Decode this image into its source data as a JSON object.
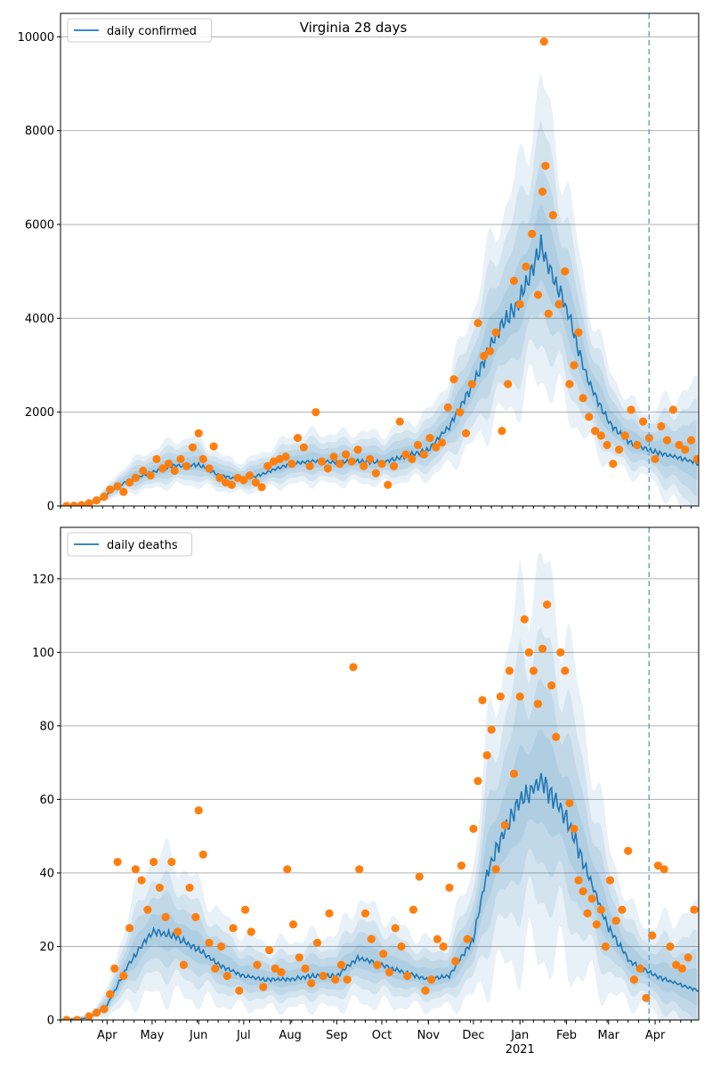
{
  "title": "Virginia 28 days",
  "colors": {
    "model_line": "#1f77b4",
    "observed_points": "#ff7f0e",
    "band": "#1f77b4",
    "grid": "#b0b0b0",
    "forecast_marker": "#6fa8d6"
  },
  "chart_data": [
    {
      "type": "line",
      "panel": "top",
      "title": "Virginia 28 days",
      "legend": {
        "placement": "top-left",
        "entries": [
          "daily confirmed"
        ]
      },
      "series": [
        {
          "name": "daily confirmed",
          "kind": "model-median-line"
        },
        {
          "kind": "observed-points"
        }
      ],
      "x_range": [
        "2020-03-01",
        "2021-04-30"
      ],
      "ylim": [
        0,
        10500
      ],
      "y_ticks": [
        0,
        2000,
        4000,
        6000,
        8000,
        10000
      ],
      "y_tick_labels": [
        "0",
        "2000",
        "4000",
        "6000",
        "8000",
        "10000"
      ],
      "grid": "y",
      "forecast_start": "2021-03-28",
      "median_anchors": [
        [
          "2020-03-01",
          0
        ],
        [
          "2020-03-15",
          10
        ],
        [
          "2020-03-25",
          80
        ],
        [
          "2020-04-01",
          250
        ],
        [
          "2020-04-15",
          550
        ],
        [
          "2020-05-01",
          720
        ],
        [
          "2020-05-15",
          850
        ],
        [
          "2020-06-01",
          880
        ],
        [
          "2020-06-15",
          650
        ],
        [
          "2020-07-01",
          560
        ],
        [
          "2020-07-15",
          700
        ],
        [
          "2020-08-01",
          900
        ],
        [
          "2020-08-15",
          950
        ],
        [
          "2020-09-01",
          930
        ],
        [
          "2020-09-15",
          960
        ],
        [
          "2020-10-01",
          930
        ],
        [
          "2020-10-15",
          1050
        ],
        [
          "2020-11-01",
          1200
        ],
        [
          "2020-11-15",
          1700
        ],
        [
          "2020-12-01",
          2600
        ],
        [
          "2020-12-15",
          3600
        ],
        [
          "2021-01-01",
          4400
        ],
        [
          "2021-01-15",
          5550
        ],
        [
          "2021-02-01",
          4200
        ],
        [
          "2021-02-15",
          2700
        ],
        [
          "2021-03-01",
          1800
        ],
        [
          "2021-03-15",
          1350
        ],
        [
          "2021-04-01",
          1150
        ],
        [
          "2021-04-15",
          1050
        ],
        [
          "2021-04-30",
          900
        ]
      ],
      "points": [
        [
          "2020-03-05",
          0
        ],
        [
          "2020-03-10",
          5
        ],
        [
          "2020-03-15",
          20
        ],
        [
          "2020-03-20",
          60
        ],
        [
          "2020-03-25",
          120
        ],
        [
          "2020-03-30",
          200
        ],
        [
          "2020-04-03",
          350
        ],
        [
          "2020-04-08",
          420
        ],
        [
          "2020-04-12",
          300
        ],
        [
          "2020-04-16",
          500
        ],
        [
          "2020-04-20",
          600
        ],
        [
          "2020-04-25",
          750
        ],
        [
          "2020-04-30",
          650
        ],
        [
          "2020-05-04",
          1000
        ],
        [
          "2020-05-08",
          800
        ],
        [
          "2020-05-12",
          900
        ],
        [
          "2020-05-16",
          750
        ],
        [
          "2020-05-20",
          1000
        ],
        [
          "2020-05-24",
          850
        ],
        [
          "2020-05-28",
          1250
        ],
        [
          "2020-06-01",
          1550
        ],
        [
          "2020-06-04",
          1000
        ],
        [
          "2020-06-08",
          800
        ],
        [
          "2020-06-11",
          1270
        ],
        [
          "2020-06-15",
          600
        ],
        [
          "2020-06-19",
          500
        ],
        [
          "2020-06-23",
          450
        ],
        [
          "2020-06-27",
          600
        ],
        [
          "2020-07-01",
          550
        ],
        [
          "2020-07-05",
          650
        ],
        [
          "2020-07-09",
          500
        ],
        [
          "2020-07-13",
          400
        ],
        [
          "2020-07-17",
          850
        ],
        [
          "2020-07-21",
          950
        ],
        [
          "2020-07-25",
          1000
        ],
        [
          "2020-07-29",
          1050
        ],
        [
          "2020-08-02",
          900
        ],
        [
          "2020-08-06",
          1450
        ],
        [
          "2020-08-10",
          1250
        ],
        [
          "2020-08-14",
          850
        ],
        [
          "2020-08-18",
          2000
        ],
        [
          "2020-08-22",
          950
        ],
        [
          "2020-08-26",
          800
        ],
        [
          "2020-08-30",
          1050
        ],
        [
          "2020-09-03",
          900
        ],
        [
          "2020-09-07",
          1100
        ],
        [
          "2020-09-11",
          950
        ],
        [
          "2020-09-15",
          1200
        ],
        [
          "2020-09-19",
          850
        ],
        [
          "2020-09-23",
          1000
        ],
        [
          "2020-09-27",
          700
        ],
        [
          "2020-10-01",
          900
        ],
        [
          "2020-10-05",
          450
        ],
        [
          "2020-10-09",
          850
        ],
        [
          "2020-10-13",
          1800
        ],
        [
          "2020-10-17",
          1100
        ],
        [
          "2020-10-21",
          1000
        ],
        [
          "2020-10-25",
          1300
        ],
        [
          "2020-10-29",
          1100
        ],
        [
          "2020-11-02",
          1450
        ],
        [
          "2020-11-06",
          1250
        ],
        [
          "2020-11-10",
          1350
        ],
        [
          "2020-11-14",
          2100
        ],
        [
          "2020-11-18",
          2700
        ],
        [
          "2020-11-22",
          2000
        ],
        [
          "2020-11-26",
          1550
        ],
        [
          "2020-11-30",
          2600
        ],
        [
          "2020-12-04",
          3900
        ],
        [
          "2020-12-08",
          3200
        ],
        [
          "2020-12-12",
          3300
        ],
        [
          "2020-12-16",
          3700
        ],
        [
          "2020-12-20",
          1600
        ],
        [
          "2020-12-24",
          2600
        ],
        [
          "2020-12-28",
          4800
        ],
        [
          "2021-01-01",
          4300
        ],
        [
          "2021-01-05",
          5100
        ],
        [
          "2021-01-09",
          5800
        ],
        [
          "2021-01-13",
          4500
        ],
        [
          "2021-01-16",
          6700
        ],
        [
          "2021-01-18",
          7250
        ],
        [
          "2021-01-17",
          9900
        ],
        [
          "2021-01-20",
          4100
        ],
        [
          "2021-01-23",
          6200
        ],
        [
          "2021-01-27",
          4300
        ],
        [
          "2021-01-31",
          5000
        ],
        [
          "2021-02-03",
          2600
        ],
        [
          "2021-02-06",
          3000
        ],
        [
          "2021-02-09",
          3700
        ],
        [
          "2021-02-12",
          2300
        ],
        [
          "2021-02-16",
          1900
        ],
        [
          "2021-02-20",
          1600
        ],
        [
          "2021-02-24",
          1500
        ],
        [
          "2021-02-28",
          1300
        ],
        [
          "2021-03-04",
          900
        ],
        [
          "2021-03-08",
          1200
        ],
        [
          "2021-03-12",
          1500
        ],
        [
          "2021-03-16",
          2050
        ],
        [
          "2021-03-20",
          1300
        ],
        [
          "2021-03-24",
          1800
        ],
        [
          "2021-03-28",
          1450
        ],
        [
          "2021-04-01",
          1000
        ],
        [
          "2021-04-05",
          1700
        ],
        [
          "2021-04-09",
          1400
        ],
        [
          "2021-04-13",
          2050
        ],
        [
          "2021-04-17",
          1300
        ],
        [
          "2021-04-21",
          1200
        ],
        [
          "2021-04-25",
          1400
        ],
        [
          "2021-04-29",
          1000
        ]
      ]
    },
    {
      "type": "line",
      "panel": "bottom",
      "legend": {
        "placement": "top-left",
        "entries": [
          "daily deaths"
        ]
      },
      "series": [
        {
          "name": "daily deaths",
          "kind": "model-median-line"
        },
        {
          "kind": "observed-points"
        }
      ],
      "x_range": [
        "2020-03-01",
        "2021-04-30"
      ],
      "x_ticks": [
        "2020-04-01",
        "2020-05-01",
        "2020-06-01",
        "2020-07-01",
        "2020-08-01",
        "2020-09-01",
        "2020-10-01",
        "2020-11-01",
        "2020-12-01",
        "2021-01-01",
        "2021-02-01",
        "2021-03-01",
        "2021-04-01"
      ],
      "x_tick_labels": [
        "Apr",
        "May",
        "Jun",
        "Jul",
        "Aug",
        "Sep",
        "Oct",
        "Nov",
        "Dec",
        "Jan",
        "Feb",
        "Mar",
        "Apr"
      ],
      "x_secondary_label": "2021",
      "ylim": [
        0,
        134
      ],
      "y_ticks": [
        0,
        20,
        40,
        60,
        80,
        100,
        120
      ],
      "y_tick_labels": [
        "0",
        "20",
        "40",
        "60",
        "80",
        "100",
        "120"
      ],
      "grid": "y",
      "forecast_start": "2021-03-28",
      "median_anchors": [
        [
          "2020-03-01",
          0
        ],
        [
          "2020-03-20",
          0.5
        ],
        [
          "2020-04-01",
          4
        ],
        [
          "2020-04-15",
          15
        ],
        [
          "2020-05-01",
          24
        ],
        [
          "2020-05-15",
          23
        ],
        [
          "2020-06-01",
          19
        ],
        [
          "2020-06-15",
          15
        ],
        [
          "2020-07-01",
          12
        ],
        [
          "2020-07-15",
          11
        ],
        [
          "2020-08-01",
          11
        ],
        [
          "2020-08-15",
          12
        ],
        [
          "2020-09-01",
          12
        ],
        [
          "2020-09-15",
          17
        ],
        [
          "2020-10-01",
          15
        ],
        [
          "2020-10-15",
          13
        ],
        [
          "2020-11-01",
          11
        ],
        [
          "2020-11-15",
          12
        ],
        [
          "2020-12-01",
          22
        ],
        [
          "2020-12-10",
          40
        ],
        [
          "2020-12-20",
          50
        ],
        [
          "2021-01-01",
          60
        ],
        [
          "2021-01-15",
          65
        ],
        [
          "2021-02-01",
          55
        ],
        [
          "2021-02-15",
          40
        ],
        [
          "2021-03-01",
          25
        ],
        [
          "2021-03-15",
          16
        ],
        [
          "2021-04-01",
          12
        ],
        [
          "2021-04-15",
          10
        ],
        [
          "2021-04-30",
          8
        ]
      ],
      "points": [
        [
          "2020-03-05",
          0
        ],
        [
          "2020-03-12",
          0
        ],
        [
          "2020-03-20",
          1
        ],
        [
          "2020-03-25",
          2
        ],
        [
          "2020-03-30",
          3
        ],
        [
          "2020-04-03",
          7
        ],
        [
          "2020-04-06",
          14
        ],
        [
          "2020-04-08",
          43
        ],
        [
          "2020-04-12",
          12
        ],
        [
          "2020-04-16",
          25
        ],
        [
          "2020-04-20",
          41
        ],
        [
          "2020-04-24",
          38
        ],
        [
          "2020-04-28",
          30
        ],
        [
          "2020-05-02",
          43
        ],
        [
          "2020-05-06",
          36
        ],
        [
          "2020-05-10",
          28
        ],
        [
          "2020-05-14",
          43
        ],
        [
          "2020-05-18",
          24
        ],
        [
          "2020-05-22",
          15
        ],
        [
          "2020-05-26",
          36
        ],
        [
          "2020-05-30",
          28
        ],
        [
          "2020-06-01",
          57
        ],
        [
          "2020-06-04",
          45
        ],
        [
          "2020-06-08",
          21
        ],
        [
          "2020-06-12",
          14
        ],
        [
          "2020-06-16",
          20
        ],
        [
          "2020-06-20",
          12
        ],
        [
          "2020-06-24",
          25
        ],
        [
          "2020-06-28",
          8
        ],
        [
          "2020-07-02",
          30
        ],
        [
          "2020-07-06",
          24
        ],
        [
          "2020-07-10",
          15
        ],
        [
          "2020-07-14",
          9
        ],
        [
          "2020-07-18",
          19
        ],
        [
          "2020-07-22",
          14
        ],
        [
          "2020-07-26",
          13
        ],
        [
          "2020-07-30",
          41
        ],
        [
          "2020-08-03",
          26
        ],
        [
          "2020-08-07",
          17
        ],
        [
          "2020-08-11",
          14
        ],
        [
          "2020-08-15",
          10
        ],
        [
          "2020-08-19",
          21
        ],
        [
          "2020-08-23",
          12
        ],
        [
          "2020-08-27",
          29
        ],
        [
          "2020-08-31",
          11
        ],
        [
          "2020-09-04",
          15
        ],
        [
          "2020-09-08",
          11
        ],
        [
          "2020-09-12",
          96
        ],
        [
          "2020-09-16",
          41
        ],
        [
          "2020-09-20",
          29
        ],
        [
          "2020-09-24",
          22
        ],
        [
          "2020-09-28",
          15
        ],
        [
          "2020-10-02",
          18
        ],
        [
          "2020-10-06",
          13
        ],
        [
          "2020-10-10",
          25
        ],
        [
          "2020-10-14",
          20
        ],
        [
          "2020-10-18",
          12
        ],
        [
          "2020-10-22",
          30
        ],
        [
          "2020-10-26",
          39
        ],
        [
          "2020-10-30",
          8
        ],
        [
          "2020-11-03",
          11
        ],
        [
          "2020-11-07",
          22
        ],
        [
          "2020-11-11",
          20
        ],
        [
          "2020-11-15",
          36
        ],
        [
          "2020-11-19",
          16
        ],
        [
          "2020-11-23",
          42
        ],
        [
          "2020-11-27",
          22
        ],
        [
          "2020-12-01",
          52
        ],
        [
          "2020-12-04",
          65
        ],
        [
          "2020-12-07",
          87
        ],
        [
          "2020-12-10",
          72
        ],
        [
          "2020-12-13",
          79
        ],
        [
          "2020-12-16",
          41
        ],
        [
          "2020-12-19",
          88
        ],
        [
          "2020-12-22",
          53
        ],
        [
          "2020-12-25",
          95
        ],
        [
          "2020-12-28",
          67
        ],
        [
          "2021-01-01",
          88
        ],
        [
          "2021-01-04",
          109
        ],
        [
          "2021-01-07",
          100
        ],
        [
          "2021-01-10",
          95
        ],
        [
          "2021-01-13",
          86
        ],
        [
          "2021-01-16",
          101
        ],
        [
          "2021-01-19",
          113
        ],
        [
          "2021-01-22",
          91
        ],
        [
          "2021-01-25",
          77
        ],
        [
          "2021-01-28",
          100
        ],
        [
          "2021-01-31",
          95
        ],
        [
          "2021-02-03",
          59
        ],
        [
          "2021-02-06",
          52
        ],
        [
          "2021-02-09",
          38
        ],
        [
          "2021-02-12",
          35
        ],
        [
          "2021-02-15",
          29
        ],
        [
          "2021-02-18",
          33
        ],
        [
          "2021-02-21",
          26
        ],
        [
          "2021-02-24",
          30
        ],
        [
          "2021-02-27",
          20
        ],
        [
          "2021-03-02",
          38
        ],
        [
          "2021-03-06",
          27
        ],
        [
          "2021-03-10",
          30
        ],
        [
          "2021-03-14",
          46
        ],
        [
          "2021-03-18",
          11
        ],
        [
          "2021-03-22",
          14
        ],
        [
          "2021-03-26",
          6
        ],
        [
          "2021-03-30",
          23
        ],
        [
          "2021-04-03",
          42
        ],
        [
          "2021-04-07",
          41
        ],
        [
          "2021-04-11",
          20
        ],
        [
          "2021-04-15",
          15
        ],
        [
          "2021-04-19",
          14
        ],
        [
          "2021-04-23",
          17
        ],
        [
          "2021-04-27",
          30
        ]
      ]
    }
  ]
}
